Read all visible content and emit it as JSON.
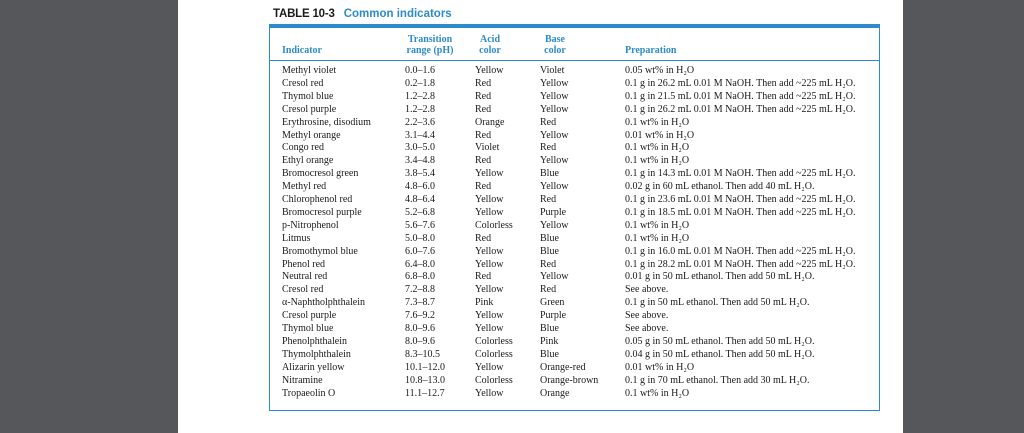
{
  "table": {
    "label": "TABLE 10-3",
    "title": "Common indicators",
    "headers": {
      "indicator": "Indicator",
      "range_top": "Transition",
      "range_bottom": "range (pH)",
      "acid_top": "Acid",
      "acid_bottom": "color",
      "base_top": "Base",
      "base_bottom": "color",
      "preparation": "Preparation"
    },
    "rows": [
      {
        "indicator": "Methyl violet",
        "range": "0.0–1.6",
        "acid": "Yellow",
        "base": "Violet",
        "prep": "0.05 wt% in H₂O"
      },
      {
        "indicator": "Cresol red",
        "range": "0.2–1.8",
        "acid": "Red",
        "base": "Yellow",
        "prep": "0.1 g in 26.2 mL 0.01 M NaOH. Then add ~225 mL H₂O."
      },
      {
        "indicator": "Thymol blue",
        "range": "1.2–2.8",
        "acid": "Red",
        "base": "Yellow",
        "prep": "0.1 g in 21.5 mL 0.01 M NaOH. Then add ~225 mL H₂O."
      },
      {
        "indicator": "Cresol purple",
        "range": "1.2–2.8",
        "acid": "Red",
        "base": "Yellow",
        "prep": "0.1 g in 26.2 mL 0.01 M NaOH. Then add ~225 mL H₂O."
      },
      {
        "indicator": "Erythrosine, disodium",
        "range": "2.2–3.6",
        "acid": "Orange",
        "base": "Red",
        "prep": "0.1 wt% in H₂O"
      },
      {
        "indicator": "Methyl orange",
        "range": "3.1–4.4",
        "acid": "Red",
        "base": "Yellow",
        "prep": "0.01 wt% in H₂O"
      },
      {
        "indicator": "Congo red",
        "range": "3.0–5.0",
        "acid": "Violet",
        "base": "Red",
        "prep": "0.1 wt% in H₂O"
      },
      {
        "indicator": "Ethyl orange",
        "range": "3.4–4.8",
        "acid": "Red",
        "base": "Yellow",
        "prep": "0.1 wt% in H₂O"
      },
      {
        "indicator": "Bromocresol green",
        "range": "3.8–5.4",
        "acid": "Yellow",
        "base": "Blue",
        "prep": "0.1 g in 14.3 mL 0.01 M NaOH. Then add ~225 mL H₂O."
      },
      {
        "indicator": "Methyl red",
        "range": "4.8–6.0",
        "acid": "Red",
        "base": "Yellow",
        "prep": "0.02 g in 60 mL ethanol. Then add 40 mL H₂O."
      },
      {
        "indicator": "Chlorophenol red",
        "range": "4.8–6.4",
        "acid": "Yellow",
        "base": "Red",
        "prep": "0.1 g in 23.6 mL 0.01 M NaOH. Then add ~225 mL H₂O."
      },
      {
        "indicator": "Bromocresol purple",
        "range": "5.2–6.8",
        "acid": "Yellow",
        "base": "Purple",
        "prep": "0.1 g in 18.5 mL 0.01 M NaOH. Then add ~225 mL H₂O."
      },
      {
        "indicator": "p-Nitrophenol",
        "range": "5.6–7.6",
        "acid": "Colorless",
        "base": "Yellow",
        "prep": "0.1 wt% in H₂O"
      },
      {
        "indicator": "Litmus",
        "range": "5.0–8.0",
        "acid": "Red",
        "base": "Blue",
        "prep": "0.1 wt% in H₂O"
      },
      {
        "indicator": "Bromothymol blue",
        "range": "6.0–7.6",
        "acid": "Yellow",
        "base": "Blue",
        "prep": "0.1 g in 16.0 mL 0.01 M NaOH. Then add ~225 mL H₂O."
      },
      {
        "indicator": "Phenol red",
        "range": "6.4–8.0",
        "acid": "Yellow",
        "base": "Red",
        "prep": "0.1 g in 28.2 mL 0.01 M NaOH. Then add ~225 mL H₂O."
      },
      {
        "indicator": "Neutral red",
        "range": "6.8–8.0",
        "acid": "Red",
        "base": "Yellow",
        "prep": "0.01 g in 50 mL ethanol. Then add 50 mL H₂O."
      },
      {
        "indicator": "Cresol red",
        "range": "7.2–8.8",
        "acid": "Yellow",
        "base": "Red",
        "prep": "See above."
      },
      {
        "indicator": "α-Naphtholphthalein",
        "range": "7.3–8.7",
        "acid": "Pink",
        "base": "Green",
        "prep": "0.1 g in 50 mL ethanol. Then add 50 mL H₂O."
      },
      {
        "indicator": "Cresol purple",
        "range": "7.6–9.2",
        "acid": "Yellow",
        "base": "Purple",
        "prep": "See above."
      },
      {
        "indicator": "Thymol blue",
        "range": "8.0–9.6",
        "acid": "Yellow",
        "base": "Blue",
        "prep": "See above."
      },
      {
        "indicator": "Phenolphthalein",
        "range": "8.0–9.6",
        "acid": "Colorless",
        "base": "Pink",
        "prep": "0.05 g in 50 mL ethanol. Then add 50 mL H₂O."
      },
      {
        "indicator": "Thymolphthalein",
        "range": "8.3–10.5",
        "acid": "Colorless",
        "base": "Blue",
        "prep": "0.04 g in 50 mL ethanol. Then add 50 mL H₂O."
      },
      {
        "indicator": "Alizarin yellow",
        "range": "10.1–12.0",
        "acid": "Yellow",
        "base": "Orange-red",
        "prep": "0.01 wt% in H₂O"
      },
      {
        "indicator": "Nitramine",
        "range": "10.8–13.0",
        "acid": "Colorless",
        "base": "Orange-brown",
        "prep": "0.1 g in 70 mL ethanol. Then add 30 mL H₂O."
      },
      {
        "indicator": "Tropaeolin O",
        "range": "11.1–12.7",
        "acid": "Yellow",
        "base": "Orange",
        "prep": "0.1 wt% in H₂O"
      }
    ]
  },
  "colors": {
    "accent": "#2d8bc9",
    "backdrop": "#56575b",
    "text": "#1a1a1a"
  }
}
